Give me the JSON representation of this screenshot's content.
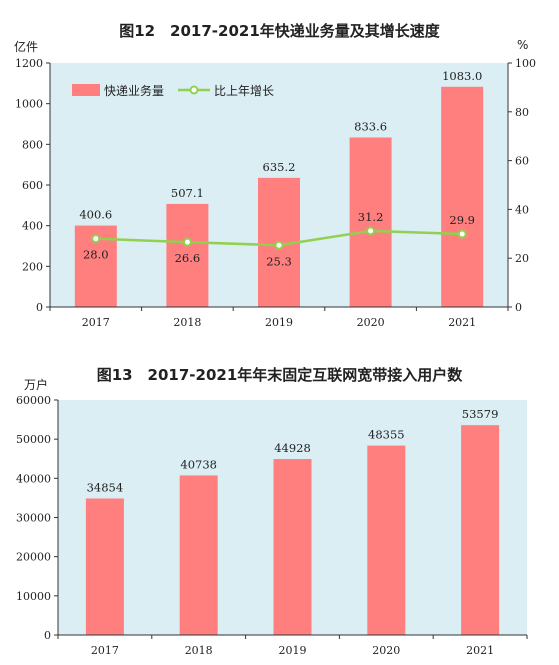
{
  "chart_data": [
    {
      "type": "bar",
      "title": "图12　2017-2021年快递业务量及其增长速度",
      "left_unit": "亿件",
      "right_unit": "%",
      "categories": [
        "2017",
        "2018",
        "2019",
        "2020",
        "2021"
      ],
      "series": [
        {
          "name": "快递业务量",
          "type": "bar",
          "axis": "left",
          "values": [
            400.6,
            507.1,
            635.2,
            833.6,
            1083.0
          ],
          "labels": [
            "400.6",
            "507.1",
            "635.2",
            "833.6",
            "1083.0"
          ]
        },
        {
          "name": "比上年增长",
          "type": "line",
          "axis": "right",
          "values": [
            28.0,
            26.6,
            25.3,
            31.2,
            29.9
          ],
          "labels": [
            "28.0",
            "26.6",
            "25.3",
            "31.2",
            "29.9"
          ]
        }
      ],
      "ylim": [
        0,
        1200
      ],
      "yticks": [
        0,
        200,
        400,
        600,
        800,
        1000,
        1200
      ],
      "y2lim": [
        0,
        100
      ],
      "y2ticks": [
        0,
        20,
        40,
        60,
        80,
        100
      ],
      "legend": "top-left",
      "grid": false,
      "colors": {
        "bar": "#ff7f7f",
        "line": "#92d050",
        "panel": "#dbeef4"
      }
    },
    {
      "type": "bar",
      "title": "图13　2017-2021年年末固定互联网宽带接入用户数",
      "left_unit": "万户",
      "categories": [
        "2017",
        "2018",
        "2019",
        "2020",
        "2021"
      ],
      "series": [
        {
          "name": "",
          "values": [
            34854,
            40738,
            44928,
            48355,
            53579
          ],
          "labels": [
            "34854",
            "40738",
            "44928",
            "48355",
            "53579"
          ]
        }
      ],
      "ylim": [
        0,
        60000
      ],
      "yticks": [
        0,
        10000,
        20000,
        30000,
        40000,
        50000,
        60000
      ],
      "grid": false,
      "colors": {
        "bar": "#ff7f7f",
        "panel": "#dbeef4"
      }
    }
  ]
}
